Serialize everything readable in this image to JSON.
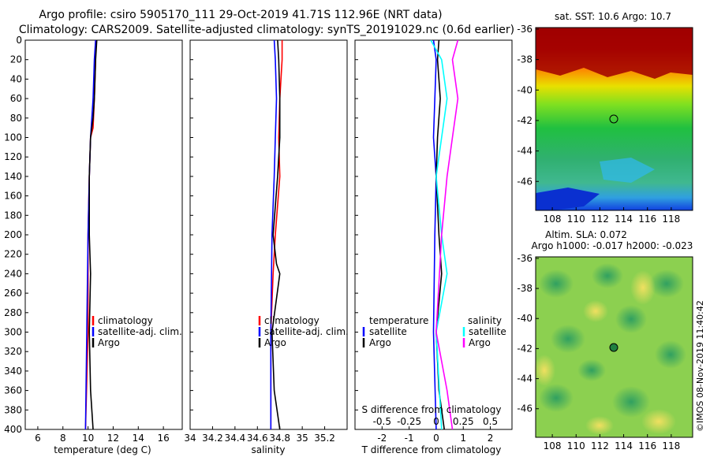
{
  "header": {
    "title_line1": "Argo profile: csiro 5905170_111 29-Oct-2019 41.71S 112.96E (NRT data)",
    "title_line2": "Climatology: CARS2009. Satellite-adjusted climatology: synTS_20191029.nc (0.6d earlier)"
  },
  "depth_axis": {
    "ticks": [
      "0",
      "20",
      "40",
      "60",
      "80",
      "100",
      "120",
      "140",
      "160",
      "180",
      "200",
      "220",
      "240",
      "260",
      "280",
      "300",
      "320",
      "340",
      "360",
      "380",
      "400"
    ]
  },
  "colors": {
    "climatology": "#ff0000",
    "satellite": "#0000ff",
    "argo": "#000000",
    "sat_cyan": "#00ffff",
    "argo_magenta": "#ff00ff"
  },
  "chart_data": [
    {
      "type": "line",
      "title": "",
      "xlabel": "temperature (deg C)",
      "ylabel": "",
      "xlim": [
        5,
        17.5
      ],
      "ylim": [
        400,
        0
      ],
      "xticks": [
        "6",
        "8",
        "10",
        "12",
        "14",
        "16"
      ],
      "legend": [
        "climatology",
        "satellite-adj. clim.",
        "Argo"
      ],
      "series": [
        {
          "name": "climatology",
          "depth": [
            0,
            20,
            60,
            90,
            100,
            140,
            200,
            300,
            400
          ],
          "values": [
            10.6,
            10.6,
            10.5,
            10.4,
            10.2,
            10.1,
            10.0,
            10.0,
            9.8
          ]
        },
        {
          "name": "satellite-adj. clim.",
          "depth": [
            0,
            20,
            60,
            100,
            140,
            200,
            300,
            400
          ],
          "values": [
            10.6,
            10.5,
            10.4,
            10.2,
            10.1,
            10.0,
            9.9,
            9.8
          ]
        },
        {
          "name": "Argo",
          "depth": [
            0,
            20,
            60,
            80,
            100,
            140,
            200,
            240,
            300,
            360,
            380,
            400
          ],
          "values": [
            10.7,
            10.6,
            10.5,
            10.4,
            10.2,
            10.1,
            10.1,
            10.2,
            10.1,
            10.2,
            10.3,
            10.4
          ]
        }
      ]
    },
    {
      "type": "line",
      "xlabel": "salinity",
      "xlim": [
        34.0,
        35.4
      ],
      "ylim": [
        400,
        0
      ],
      "xticks": [
        "34",
        "34.2",
        "34.4",
        "34.6",
        "34.8",
        "35",
        "35.2"
      ],
      "legend": [
        "climatology",
        "satellite-adj. clim.",
        "Argo"
      ],
      "series": [
        {
          "name": "climatology",
          "depth": [
            0,
            20,
            60,
            100,
            140,
            200,
            240,
            300,
            400
          ],
          "values": [
            34.82,
            34.82,
            34.8,
            34.79,
            34.8,
            34.76,
            34.74,
            34.72,
            34.72
          ]
        },
        {
          "name": "satellite-adj. clim.",
          "depth": [
            0,
            20,
            60,
            100,
            140,
            200,
            300,
            400
          ],
          "values": [
            34.75,
            34.76,
            34.77,
            34.76,
            34.75,
            34.73,
            34.72,
            34.72
          ]
        },
        {
          "name": "Argo",
          "depth": [
            0,
            20,
            60,
            100,
            140,
            200,
            230,
            240,
            300,
            360,
            400
          ],
          "values": [
            34.78,
            34.79,
            34.8,
            34.8,
            34.78,
            34.74,
            34.77,
            34.8,
            34.73,
            34.75,
            34.8
          ]
        }
      ]
    },
    {
      "type": "line",
      "xlabel": "T difference from climatology",
      "top_label": "S difference from climatology",
      "xlim": [
        -3.0,
        2.8
      ],
      "ylim": [
        400,
        0
      ],
      "xticks": [
        "-2",
        "-1",
        "0",
        "1",
        "2"
      ],
      "top_ticks": [
        "-0.5",
        "-0.25",
        "0",
        "0.25",
        "0.5"
      ],
      "legend_temperature": {
        "heading": "temperature",
        "items": [
          "satellite",
          "Argo"
        ]
      },
      "legend_salinity": {
        "heading": "salinity",
        "items": [
          "satellite",
          "Argo"
        ]
      },
      "series": [
        {
          "name": "temperature satellite",
          "depth": [
            0,
            20,
            60,
            100,
            140,
            200,
            300,
            400
          ],
          "values": [
            -0.1,
            0.0,
            -0.05,
            -0.1,
            0.0,
            -0.05,
            -0.1,
            0.0
          ]
        },
        {
          "name": "temperature Argo",
          "depth": [
            0,
            20,
            60,
            100,
            140,
            200,
            240,
            300,
            360,
            400
          ],
          "values": [
            0.1,
            0.05,
            0.15,
            0.05,
            0.0,
            0.1,
            0.2,
            0.0,
            0.1,
            0.3
          ]
        },
        {
          "name": "salinity satellite",
          "depth": [
            0,
            20,
            60,
            100,
            140,
            200,
            240,
            300,
            400
          ],
          "values": [
            -0.05,
            0.05,
            0.1,
            0.05,
            0.0,
            0.05,
            0.1,
            0.0,
            0.05
          ]
        },
        {
          "name": "salinity Argo",
          "depth": [
            0,
            20,
            60,
            100,
            140,
            200,
            300,
            360,
            400
          ],
          "values": [
            0.2,
            0.15,
            0.2,
            0.15,
            0.1,
            0.05,
            0.0,
            0.1,
            0.15
          ]
        }
      ]
    }
  ],
  "maps": {
    "sst": {
      "title": "sat. SST: 10.6 Argo: 10.7",
      "yticks": [
        "-36",
        "-38",
        "-40",
        "-42",
        "-44",
        "-46"
      ],
      "xticks": [
        "108",
        "110",
        "112",
        "114",
        "116",
        "118"
      ],
      "float_lon": 112.96,
      "float_lat": -41.71
    },
    "sla": {
      "title1": "Altim. SLA: 0.072",
      "title2": "Argo h1000: -0.017 h2000: -0.023",
      "yticks": [
        "-36",
        "-38",
        "-40",
        "-42",
        "-44",
        "-46"
      ],
      "xticks": [
        "108",
        "110",
        "112",
        "114",
        "116",
        "118"
      ],
      "float_lon": 112.96,
      "float_lat": -41.71
    }
  },
  "footer": {
    "credit": "©IMOS 08-Nov-2019 11:40:42"
  }
}
